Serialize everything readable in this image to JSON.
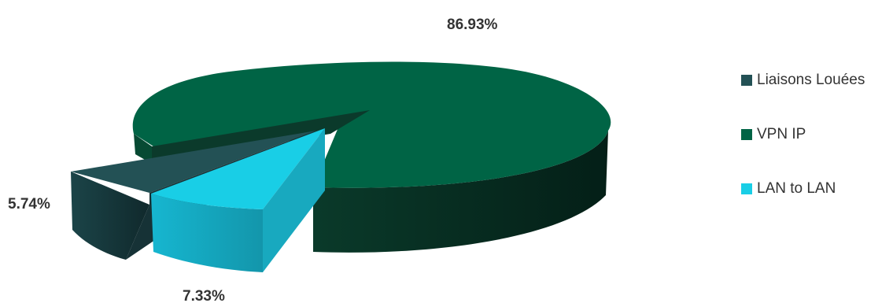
{
  "chart_data": {
    "type": "pie",
    "title": "",
    "categories": [
      "Liaisons Louées",
      "VPN IP",
      "LAN to LAN"
    ],
    "values": [
      5.74,
      86.93,
      7.33
    ],
    "labels": [
      "5.74%",
      "86.93%",
      "7.33%"
    ],
    "colors": [
      "#235155",
      "#006445",
      "#19CEE6"
    ],
    "legend_position": "right",
    "style": "3d-exploded"
  }
}
